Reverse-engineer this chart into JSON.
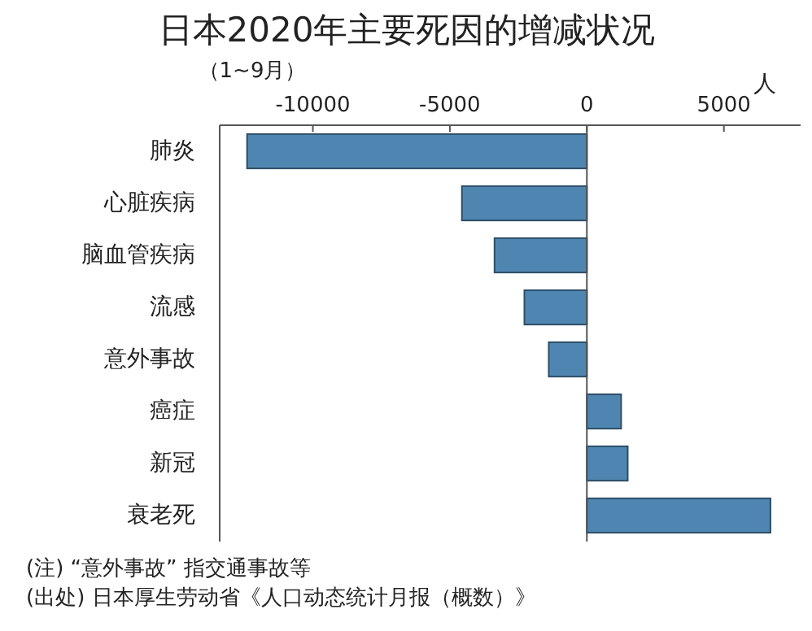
{
  "chart_data": {
    "type": "bar",
    "orientation": "horizontal",
    "title": "日本2020年主要死因的增减状况",
    "subtitle": "（1~9月）",
    "xlabel": "人",
    "categories": [
      "肺炎",
      "心脏疾病",
      "脑血管疾病",
      "流感",
      "意外事故",
      "癌症",
      "新冠",
      "衰老死"
    ],
    "values": [
      -12400,
      -4560,
      -3370,
      -2280,
      -1390,
      1250,
      1490,
      6700
    ],
    "color": "#4f86b1",
    "xlim": [
      -13400,
      7800
    ],
    "xticks": [
      -10000,
      -5000,
      0,
      5000
    ],
    "ref_lines": [
      {
        "axis": "x",
        "value": 0,
        "color": "#555555"
      }
    ],
    "grid": false,
    "annotations": [
      "(注) “意外事故” 指交通事故等",
      "(出处) 日本厚生劳动省《人口动态统计月报（概数）》"
    ]
  }
}
